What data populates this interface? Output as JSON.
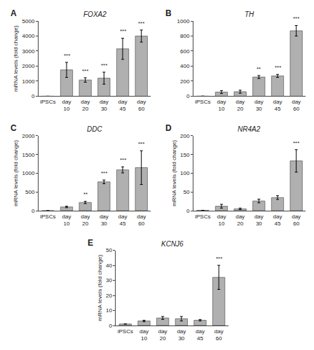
{
  "chart_data": [
    {
      "type": "bar",
      "panel_label": "A",
      "title": "FOXA2",
      "categories": [
        "iPSCs",
        "day\n10",
        "day\n20",
        "day\n30",
        "day\n45",
        "day\n60"
      ],
      "values": [
        1.0,
        1750,
        1080,
        1200,
        3150,
        4000
      ],
      "errors": [
        0,
        500,
        150,
        400,
        700,
        400
      ],
      "ylim": [
        0,
        5000
      ],
      "yticks": [
        0,
        1000,
        2000,
        3000,
        4000,
        5000
      ],
      "ylabel": "mRNA levels (fold change)",
      "color": "#b0b0b0",
      "grid": false,
      "annotations": [
        {
          "category": "day\n10",
          "text": "***"
        },
        {
          "category": "day\n20",
          "text": "***"
        },
        {
          "category": "day\n30",
          "text": "***"
        },
        {
          "category": "day\n45",
          "text": "***"
        },
        {
          "category": "day\n60",
          "text": "***"
        }
      ]
    },
    {
      "type": "bar",
      "panel_label": "B",
      "title": "TH",
      "categories": [
        "iPSCs",
        "day\n10",
        "day\n20",
        "day\n30",
        "day\n45",
        "day\n60"
      ],
      "values": [
        1.0,
        55,
        60,
        255,
        270,
        870
      ],
      "errors": [
        0,
        20,
        20,
        20,
        20,
        70
      ],
      "ylim": [
        0,
        1000
      ],
      "yticks": [
        0,
        200,
        400,
        600,
        800,
        1000
      ],
      "color": "#b0b0b0",
      "grid": false,
      "annotations": [
        {
          "category": "day\n30",
          "text": "**"
        },
        {
          "category": "day\n45",
          "text": "***"
        },
        {
          "category": "day\n60",
          "text": "***"
        }
      ]
    },
    {
      "type": "bar",
      "panel_label": "C",
      "title": "DDC",
      "categories": [
        "iPSCs",
        "day\n10",
        "day\n20",
        "day\n30",
        "day\n45",
        "day\n60"
      ],
      "values": [
        1.0,
        100,
        220,
        770,
        1090,
        1150
      ],
      "errors": [
        0,
        20,
        30,
        50,
        80,
        450
      ],
      "ylim": [
        0,
        2000
      ],
      "yticks": [
        0,
        500,
        1000,
        1500,
        2000
      ],
      "ylabel": "mRNA levels (fold change)",
      "color": "#b0b0b0",
      "grid": false,
      "annotations": [
        {
          "category": "day\n20",
          "text": "**"
        },
        {
          "category": "day\n30",
          "text": "***"
        },
        {
          "category": "day\n45",
          "text": "***"
        },
        {
          "category": "day\n60",
          "text": "***"
        }
      ]
    },
    {
      "type": "bar",
      "panel_label": "D",
      "title": "NR4A2",
      "categories": [
        "iPSCs",
        "day\n10",
        "day\n20",
        "day\n30",
        "day\n45",
        "day\n60"
      ],
      "values": [
        1.0,
        12,
        5,
        26,
        35,
        133
      ],
      "errors": [
        0,
        5,
        2,
        5,
        5,
        30
      ],
      "ylim": [
        0,
        200
      ],
      "yticks": [
        0,
        50,
        100,
        150,
        200
      ],
      "ylabel": "mRNA levels (fold change)",
      "color": "#b0b0b0",
      "grid": false,
      "annotations": [
        {
          "category": "day\n60",
          "text": "***"
        }
      ]
    },
    {
      "type": "bar",
      "panel_label": "E",
      "title": "KCNJ6",
      "categories": [
        "iPSCs",
        "day\n10",
        "day\n20",
        "day\n30",
        "day\n45",
        "day\n60"
      ],
      "values": [
        1.0,
        3,
        5,
        4.5,
        3.5,
        32
      ],
      "errors": [
        0,
        0.5,
        1.0,
        1.5,
        0.5,
        8
      ],
      "ylim": [
        0,
        50
      ],
      "yticks": [
        0,
        10,
        20,
        30,
        40,
        50
      ],
      "ylabel": "mRNA levels (fold change)",
      "color": "#b0b0b0",
      "grid": false,
      "annotations": [
        {
          "category": "day\n60",
          "text": "***"
        }
      ]
    }
  ]
}
